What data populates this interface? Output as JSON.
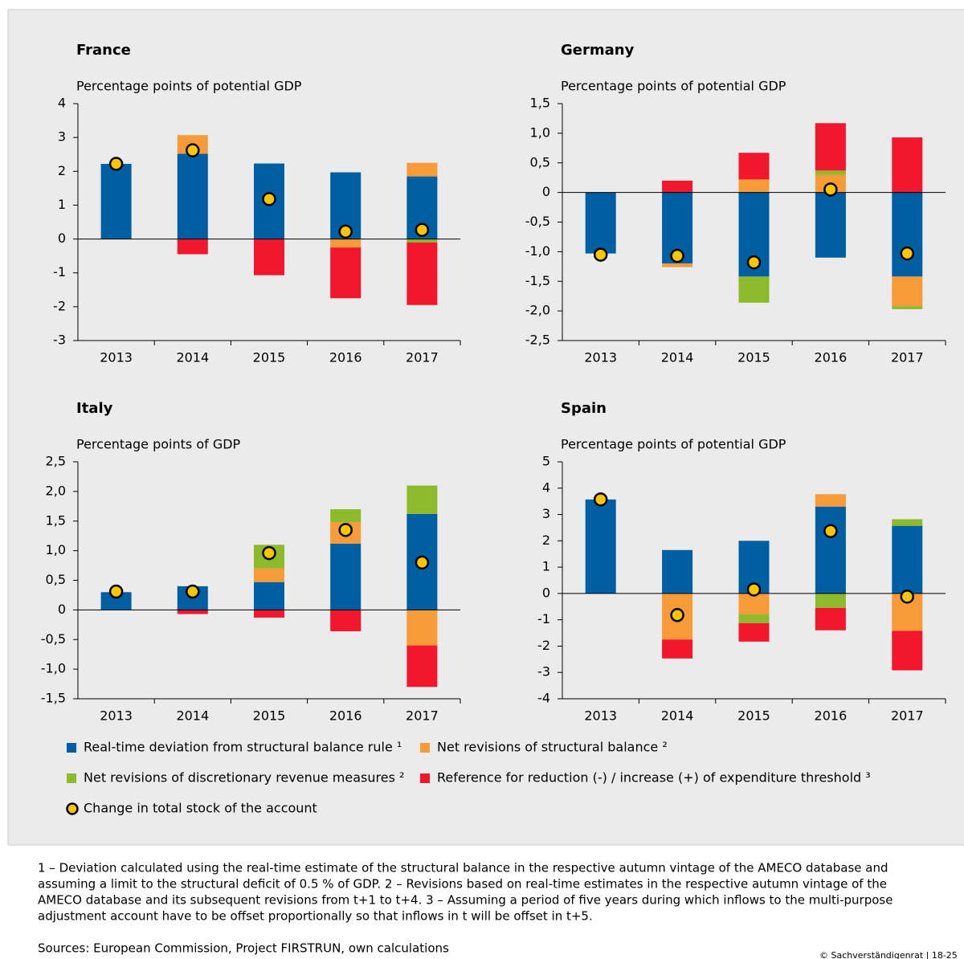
{
  "chart_data": [
    {
      "type": "bar",
      "stacked": true,
      "title": "France",
      "y_label": "Percentage points of potential GDP",
      "categories": [
        "2013",
        "2014",
        "2015",
        "2016",
        "2017"
      ],
      "ylim": [
        -3,
        4
      ],
      "yticks": [
        4,
        3,
        2,
        1,
        0,
        -1,
        -2,
        -3
      ],
      "series": [
        {
          "values": [
            2.22,
            2.52,
            2.23,
            1.97,
            1.85
          ]
        },
        {
          "values": [
            0,
            0.55,
            0,
            -0.25,
            0.4
          ]
        },
        {
          "values": [
            0,
            0,
            0,
            0,
            -0.1
          ]
        },
        {
          "values": [
            0,
            -0.45,
            -1.07,
            -1.5,
            -1.85
          ]
        }
      ],
      "markers": [
        2.22,
        2.62,
        1.18,
        0.22,
        0.27
      ]
    },
    {
      "type": "bar",
      "stacked": true,
      "title": "Germany",
      "y_label": "Percentage points of potential GDP",
      "categories": [
        "2013",
        "2014",
        "2015",
        "2016",
        "2017"
      ],
      "ylim": [
        -2.5,
        1.5
      ],
      "yticks": [
        {
          "value": 1.5,
          "label": "1,5"
        },
        {
          "value": 1.0,
          "label": "1,0"
        },
        {
          "value": 0.5,
          "label": "0,5"
        },
        0,
        {
          "value": -0.5,
          "label": "-0,5"
        },
        {
          "value": -1.0,
          "label": "-1,0"
        },
        {
          "value": -1.5,
          "label": "-1,5"
        },
        {
          "value": -2.0,
          "label": "-2,0"
        },
        {
          "value": -2.5,
          "label": "-2,5"
        }
      ],
      "series": [
        {
          "values": [
            -1.03,
            -1.2,
            -1.42,
            -1.1,
            -1.42
          ]
        },
        {
          "values": [
            0,
            -0.06,
            0.22,
            0.3,
            -0.5
          ]
        },
        {
          "values": [
            0,
            0,
            -0.44,
            0.07,
            -0.05
          ]
        },
        {
          "values": [
            0,
            0.2,
            0.45,
            0.8,
            0.93
          ]
        }
      ],
      "markers": [
        -1.05,
        -1.07,
        -1.18,
        0.05,
        -1.03
      ]
    },
    {
      "type": "bar",
      "stacked": true,
      "title": "Italy",
      "y_label": "Percentage points of GDP",
      "categories": [
        "2013",
        "2014",
        "2015",
        "2016",
        "2017"
      ],
      "ylim": [
        -1.5,
        2.5
      ],
      "yticks": [
        {
          "value": 2.5,
          "label": "2,5"
        },
        {
          "value": 2.0,
          "label": "2,0"
        },
        {
          "value": 1.5,
          "label": "1,5"
        },
        {
          "value": 1.0,
          "label": "1,0"
        },
        {
          "value": 0.5,
          "label": "0,5"
        },
        0,
        {
          "value": -0.5,
          "label": "-0,5"
        },
        {
          "value": -1.0,
          "label": "-1,0"
        },
        {
          "value": -1.5,
          "label": "-1,5"
        }
      ],
      "series": [
        {
          "values": [
            0.3,
            0.4,
            0.47,
            1.12,
            1.62
          ]
        },
        {
          "values": [
            0,
            0,
            0.23,
            0.36,
            -0.6
          ]
        },
        {
          "values": [
            0,
            0,
            0.4,
            0.22,
            0.48
          ]
        },
        {
          "values": [
            0,
            -0.07,
            -0.13,
            -0.36,
            -0.7
          ]
        }
      ],
      "markers": [
        0.31,
        0.31,
        0.96,
        1.35,
        0.8
      ]
    },
    {
      "type": "bar",
      "stacked": true,
      "title": "Spain",
      "y_label": "Percentage points of potential GDP",
      "categories": [
        "2013",
        "2014",
        "2015",
        "2016",
        "2017"
      ],
      "ylim": [
        -4,
        5
      ],
      "yticks": [
        5,
        4,
        3,
        2,
        1,
        0,
        -1,
        -2,
        -3,
        -4
      ],
      "series": [
        {
          "values": [
            3.57,
            1.65,
            2.0,
            3.3,
            2.57
          ]
        },
        {
          "values": [
            0,
            -1.75,
            -0.8,
            0.47,
            -1.42
          ]
        },
        {
          "values": [
            0,
            0,
            -0.33,
            -0.55,
            0.25
          ]
        },
        {
          "values": [
            0,
            -0.72,
            -0.7,
            -0.85,
            -1.5
          ]
        }
      ],
      "markers": [
        3.57,
        -0.82,
        0.15,
        2.37,
        -0.12
      ]
    }
  ],
  "legend": [
    {
      "name": "Real-time deviation from structural balance rule ¹",
      "color": "#005ea2"
    },
    {
      "name": "Net revisions of structural balance ²",
      "color": "#f79a38"
    },
    {
      "name": "Net revisions of discretionary revenue measures ²",
      "color": "#8cba2a"
    },
    {
      "name": "Reference for reduction (-) / increase (+) of expenditure threshold ³",
      "color": "#f2172d"
    },
    {
      "name": "Change in total stock of the account",
      "color": "#f7c600"
    }
  ],
  "notes": [
    "1 – Deviation calculated using the real-time estimate of the structural balance in the respective autumn vintage of the AMECO database and",
    "assuming a limit to the structural deficit of 0.5 % of GDP.  2 – Revisions based on real-time estimates in the respective autumn vintage of the",
    "AMECO database and its subsequent revisions from t+1 to t+4.  3 – Assuming a period of five years during which inflows to the multi-purpose",
    "adjustment account have to be offset proportionally so that inflows in t will be offset in t+5."
  ],
  "sources": "Sources: European Commission, Project FIRSTRUN, own calculations",
  "copyright": "© Sachverständigenrat | 18-25"
}
